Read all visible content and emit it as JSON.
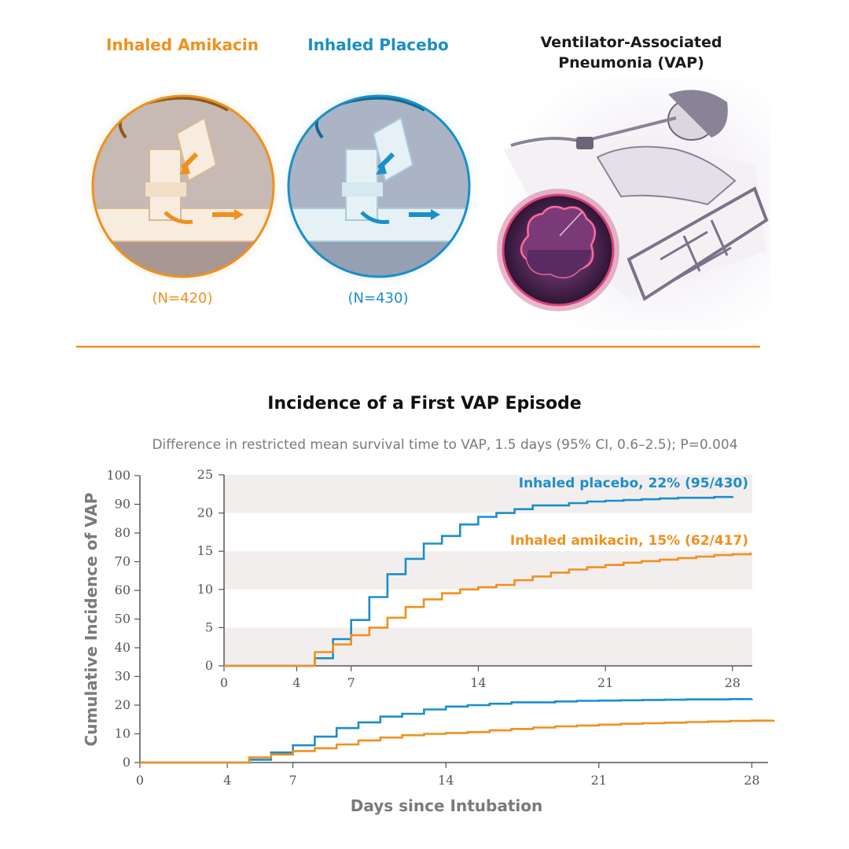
{
  "colors": {
    "amikacin": "#f0901e",
    "placebo": "#1a8fc9",
    "rule": "#f0901e",
    "band": "#f3eeee"
  },
  "header": {
    "arm_amikacin": {
      "title": "Inhaled Amikacin",
      "n": "(N=420)"
    },
    "arm_placebo": {
      "title": "Inhaled Placebo",
      "n": "(N=430)"
    },
    "vap": {
      "title_line1": "Ventilator-Associated",
      "title_line2": "Pneumonia (VAP)"
    }
  },
  "chart_data": {
    "type": "line",
    "step": true,
    "title": "Incidence of a First VAP Episode",
    "subtitle": "Difference in restricted mean survival time to VAP, 1.5 days (95% CI, 0.6–2.5); P=0.004",
    "xlabel": "Days since Intubation",
    "ylabel": "Cumulative Incidence of VAP",
    "x_ticks": [
      0,
      4,
      7,
      14,
      21,
      28
    ],
    "xlim": [
      0,
      29
    ],
    "ylim": [
      0,
      100
    ],
    "y_ticks": [
      0,
      10,
      20,
      30,
      40,
      50,
      60,
      70,
      80,
      90,
      100
    ],
    "inset": {
      "ylim": [
        0,
        25
      ],
      "y_ticks": [
        0,
        5,
        10,
        15,
        20,
        25
      ],
      "x_ticks": [
        0,
        4,
        7,
        14,
        21,
        28
      ],
      "grid": "alternating bands"
    },
    "series": [
      {
        "key": "placebo",
        "label": "Inhaled placebo, 22% (95/430)",
        "x": [
          0,
          5,
          6,
          7,
          8,
          9,
          10,
          11,
          12,
          13,
          14,
          15,
          16,
          17,
          18,
          19,
          20,
          21,
          22,
          23,
          24,
          25,
          26,
          27,
          28
        ],
        "y": [
          0,
          1,
          3.5,
          6,
          9,
          12,
          14,
          16,
          17,
          18.5,
          19.5,
          20,
          20.5,
          21,
          21,
          21.3,
          21.5,
          21.6,
          21.7,
          21.8,
          21.9,
          22,
          22,
          22.1,
          22.2
        ]
      },
      {
        "key": "amikacin",
        "label": "Inhaled amikacin, 15% (62/417)",
        "x": [
          0,
          5,
          6,
          7,
          8,
          9,
          10,
          11,
          12,
          13,
          14,
          15,
          16,
          17,
          18,
          19,
          20,
          21,
          22,
          23,
          24,
          25,
          26,
          27,
          28,
          29
        ],
        "y": [
          0,
          1.8,
          2.8,
          4,
          5,
          6.3,
          7.7,
          8.7,
          9.5,
          10,
          10.3,
          10.6,
          11.2,
          11.7,
          12.2,
          12.6,
          12.9,
          13.2,
          13.5,
          13.7,
          13.9,
          14.1,
          14.3,
          14.5,
          14.6,
          14.8
        ]
      }
    ]
  }
}
